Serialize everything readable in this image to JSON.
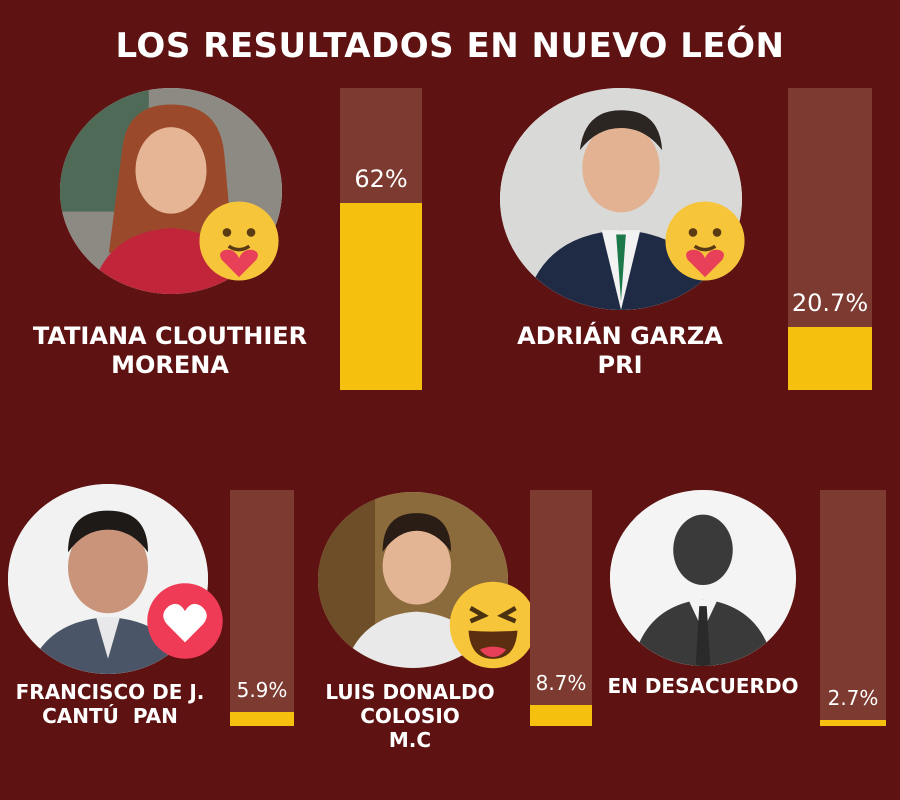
{
  "title": "LOS RESULTADOS EN NUEVO LEÓN",
  "colors": {
    "background": "#5e1212",
    "bar_track": "#7d3a30",
    "bar_fill": "#f6c00f"
  },
  "chart_data": {
    "type": "bar",
    "title": "LOS RESULTADOS EN NUEVO LEÓN",
    "ylim": [
      0,
      100
    ],
    "categories": [
      "TATIANA CLOUTHIER MORENA",
      "ADRIÁN GARZA PRI",
      "FRANCISCO DE J. CANTÚ PAN",
      "LUIS DONALDO COLOSIO M.C",
      "EN DESACUERDO"
    ],
    "values": [
      62,
      20.7,
      5.9,
      8.7,
      2.7
    ],
    "value_labels": [
      "62%",
      "20.7%",
      "5.9%",
      "8.7%",
      "2.7%"
    ]
  },
  "candidates": [
    {
      "name_line1": "TATIANA CLOUTHIER",
      "name_line2": "MORENA",
      "name_line3": "",
      "percent_label": "62%",
      "reaction": "care-hug-icon"
    },
    {
      "name_line1": "ADRIÁN GARZA",
      "name_line2": "PRI",
      "name_line3": "",
      "percent_label": "20.7%",
      "reaction": "care-hug-icon"
    },
    {
      "name_line1": "FRANCISCO DE J.",
      "name_line2": "CANTÚ  PAN",
      "name_line3": "",
      "percent_label": "5.9%",
      "reaction": "love-heart-icon"
    },
    {
      "name_line1": "LUIS DONALDO",
      "name_line2": "COLOSIO",
      "name_line3": "M.C",
      "percent_label": "8.7%",
      "reaction": "laughing-face-icon"
    },
    {
      "name_line1": "EN DESACUERDO",
      "name_line2": "",
      "name_line3": "",
      "percent_label": "2.7%",
      "reaction": ""
    }
  ]
}
